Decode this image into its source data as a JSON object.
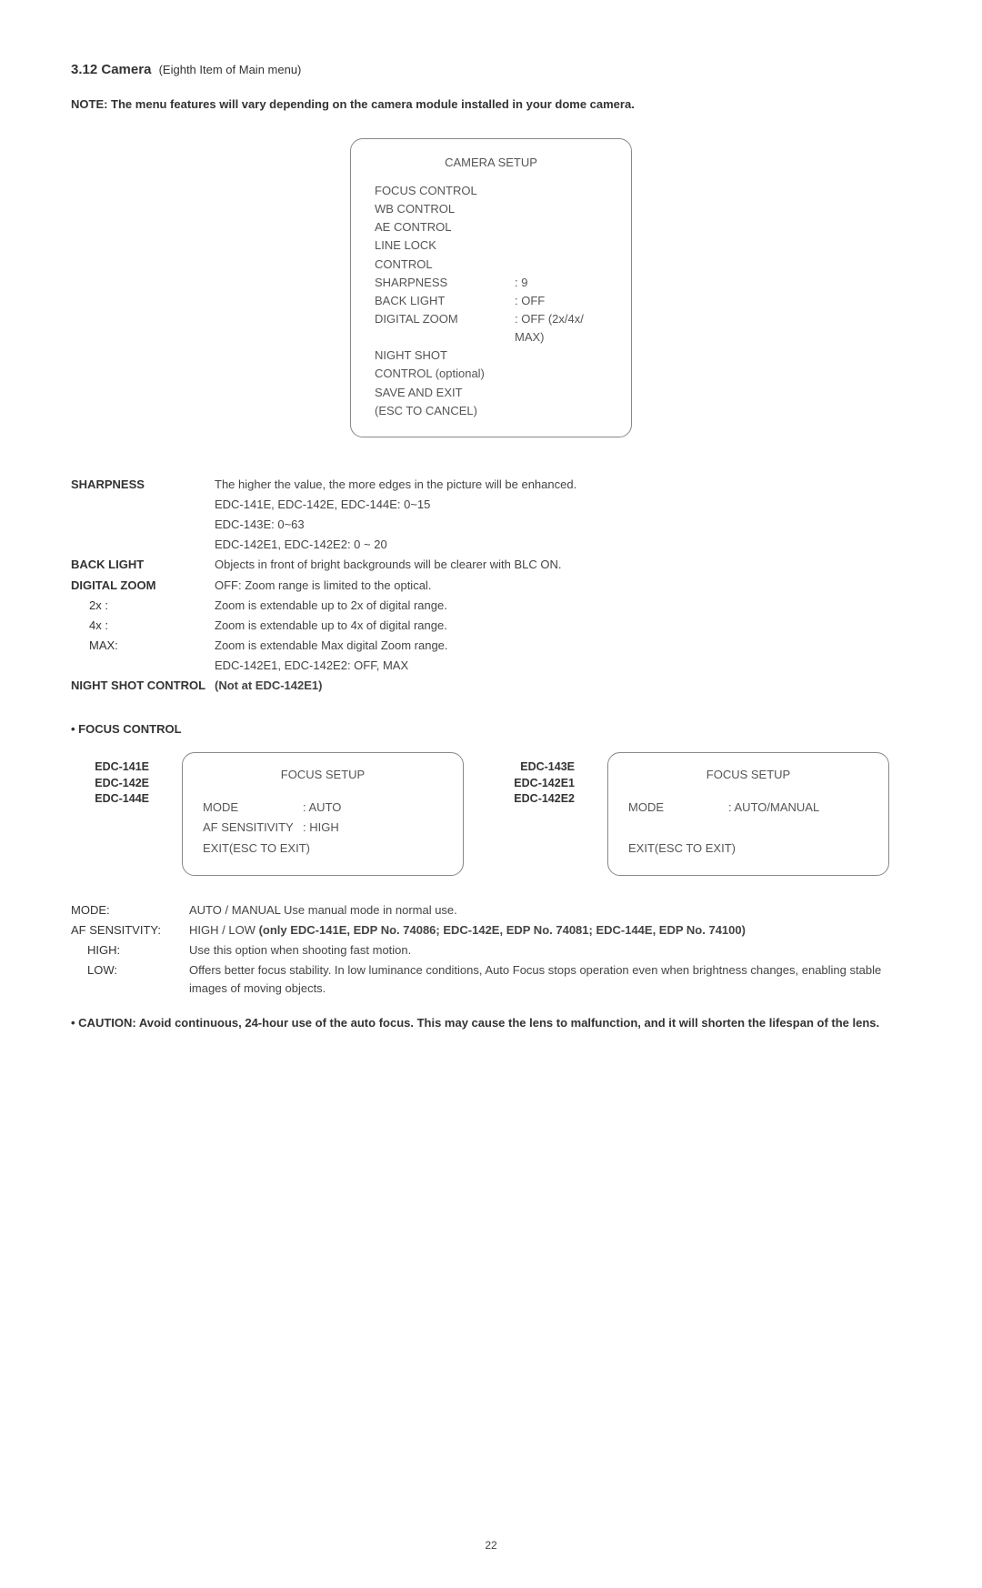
{
  "heading": {
    "number": "3.12",
    "title": "Camera",
    "sub": "(Eighth Item of Main menu)"
  },
  "note": "NOTE: The menu features will vary depending on the camera module installed in your dome camera.",
  "camera_setup": {
    "title": "CAMERA SETUP",
    "rows": [
      {
        "label": "FOCUS CONTROL",
        "value": ""
      },
      {
        "label": "WB CONTROL",
        "value": ""
      },
      {
        "label": "AE CONTROL",
        "value": ""
      },
      {
        "label": "LINE LOCK CONTROL",
        "value": ""
      },
      {
        "label": "SHARPNESS",
        "value": ": 9"
      },
      {
        "label": "BACK LIGHT",
        "value": ": OFF"
      },
      {
        "label": "DIGITAL ZOOM",
        "value": ": OFF (2x/4x/ MAX)"
      },
      {
        "label": "NIGHT SHOT CONTROL (optional)",
        "value": ""
      },
      {
        "label": "SAVE AND EXIT (ESC TO CANCEL)",
        "value": ""
      }
    ]
  },
  "definitions": [
    {
      "term": "SHARPNESS",
      "desc": "The higher the value, the more edges in the picture will be enhanced.",
      "bold": true
    },
    {
      "term": "",
      "desc": "EDC-141E, EDC-142E, EDC-144E: 0~15",
      "bold": false
    },
    {
      "term": "",
      "desc": "EDC-143E: 0~63",
      "bold": false
    },
    {
      "term": "",
      "desc": "EDC-142E1, EDC-142E2: 0 ~ 20",
      "bold": false
    },
    {
      "term": "BACK LIGHT",
      "desc": "Objects in front of bright backgrounds will be clearer with BLC ON.",
      "bold": true
    },
    {
      "term": "DIGITAL ZOOM",
      "desc": "OFF: Zoom range is limited to the optical.",
      "bold": true
    },
    {
      "term": "2x :",
      "desc": "Zoom is extendable up to 2x of digital range.",
      "sub": true
    },
    {
      "term": "4x :",
      "desc": "Zoom is extendable up to 4x of digital range.",
      "sub": true
    },
    {
      "term": "MAX:",
      "desc": "Zoom is extendable Max digital Zoom range.",
      "sub": true
    },
    {
      "term": "",
      "desc": "EDC-142E1, EDC-142E2: OFF, MAX",
      "bold": false
    },
    {
      "term": "NIGHT SHOT CONTROL",
      "desc": "(Not at EDC-142E1)",
      "bold": true,
      "descbold": true
    }
  ],
  "focus_control_heading": "•  FOCUS CONTROL",
  "focus_left": {
    "models": [
      "EDC-141E",
      "EDC-142E",
      "EDC-144E"
    ],
    "title": "FOCUS SETUP",
    "lines": [
      {
        "k": "MODE",
        "v": ": AUTO"
      },
      {
        "k": "AF SENSITIVITY",
        "v": ": HIGH"
      },
      {
        "k": "EXIT(ESC TO EXIT)",
        "v": ""
      }
    ]
  },
  "focus_right": {
    "models": [
      "EDC-143E",
      "EDC-142E1",
      "EDC-142E2"
    ],
    "title": "FOCUS SETUP",
    "lines": [
      {
        "k": "MODE",
        "v": ": AUTO/MANUAL"
      },
      {
        "k": "",
        "v": ""
      },
      {
        "k": "EXIT(ESC TO EXIT)",
        "v": ""
      }
    ]
  },
  "definitions2": [
    {
      "term": "MODE:",
      "desc": "AUTO / MANUAL Use manual mode in normal use."
    },
    {
      "term": "AF SENSITVITY:",
      "desc_prefix": "HIGH / LOW ",
      "desc_bold": "(only EDC-141E, EDP No. 74086; EDC-142E, EDP No. 74081; EDC-144E, EDP No. 74100)"
    },
    {
      "term": "HIGH:",
      "desc": "Use this option when shooting fast motion.",
      "sub": true
    },
    {
      "term": "LOW:",
      "desc": "Offers better focus stability. In low luminance conditions, Auto Focus stops operation even when brightness changes, enabling stable images of moving objects.",
      "sub": true
    }
  ],
  "caution": "•  CAUTION:  Avoid continuous, 24-hour use of the auto focus. This may cause the lens to malfunction, and it will shorten the lifespan of the lens.",
  "page_number": "22"
}
